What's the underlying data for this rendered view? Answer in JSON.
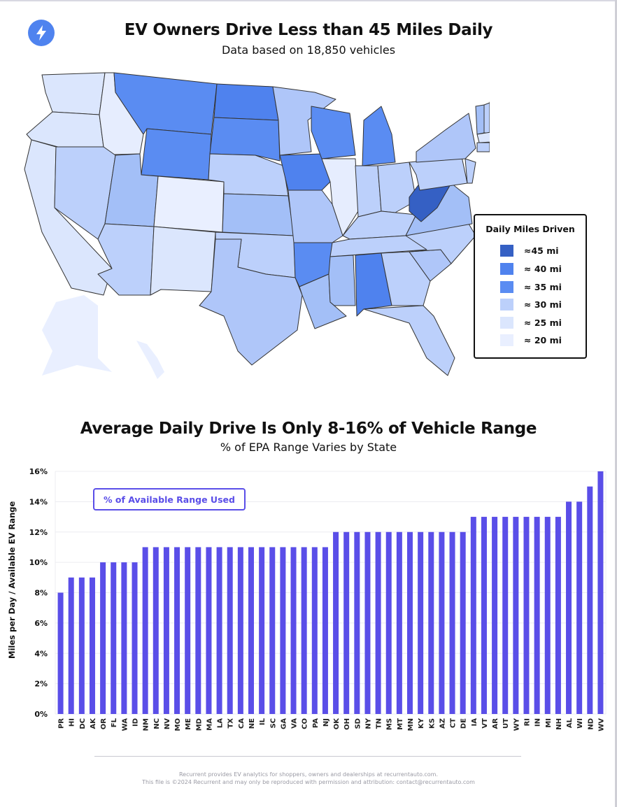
{
  "header": {
    "logo_icon": "lightning-bolt-icon",
    "title": "EV Owners Drive Less than 45 Miles Daily",
    "subtitle": "Data based on 18,850 vehicles"
  },
  "map": {
    "legend": {
      "title": "Daily Miles Driven",
      "items": [
        {
          "label": "≈45 mi",
          "color": "#3560c4"
        },
        {
          "label": "≈ 40 mi",
          "color": "#4f82ee"
        },
        {
          "label": "≈ 35 mi",
          "color": "#5a8cf2"
        },
        {
          "label": "≈ 30 mi",
          "color": "#bcd0fb"
        },
        {
          "label": "≈ 25 mi",
          "color": "#dbe6fd"
        },
        {
          "label": "≈ 20 mi",
          "color": "#e9efff"
        }
      ]
    }
  },
  "chart_section": {
    "title": "Average Daily Drive Is Only 8-16% of Vehicle Range",
    "subtitle": "% of EPA Range Varies by State",
    "ylabel": "Miles per Day  /  Available EV Range",
    "series_label": "% of Available Range Used"
  },
  "chart_data": {
    "type": "bar",
    "title": "Average Daily Drive Is Only 8-16% of Vehicle Range",
    "subtitle": "% of EPA Range Varies by State",
    "xlabel": "",
    "ylabel": "Miles per Day / Available EV Range",
    "ylim": [
      0,
      16
    ],
    "yticks": [
      "0%",
      "2%",
      "4%",
      "6%",
      "8%",
      "10%",
      "12%",
      "14%",
      "16%"
    ],
    "grid": true,
    "legend": "top-left",
    "bar_color": "#5a4ee8",
    "series_name": "% of Available Range Used",
    "categories": [
      "PR",
      "HI",
      "DC",
      "AK",
      "OR",
      "FL",
      "WA",
      "ID",
      "NM",
      "NC",
      "NV",
      "MO",
      "ME",
      "MD",
      "MA",
      "LA",
      "TX",
      "CA",
      "NE",
      "IL",
      "SC",
      "GA",
      "VA",
      "CO",
      "PA",
      "NJ",
      "OK",
      "OH",
      "SD",
      "NY",
      "TN",
      "MS",
      "MT",
      "MN",
      "KY",
      "KS",
      "AZ",
      "CT",
      "DE",
      "IA",
      "VT",
      "AR",
      "UT",
      "WY",
      "RI",
      "IN",
      "MI",
      "NH",
      "AL",
      "WI",
      "ND",
      "WV"
    ],
    "values": [
      8,
      9,
      9,
      9,
      10,
      10,
      10,
      10,
      11,
      11,
      11,
      11,
      11,
      11,
      11,
      11,
      11,
      11,
      11,
      11,
      11,
      11,
      11,
      11,
      11,
      11,
      12,
      12,
      12,
      12,
      12,
      12,
      12,
      12,
      12,
      12,
      12,
      12,
      12,
      13,
      13,
      13,
      13,
      13,
      13,
      13,
      13,
      13,
      14,
      14,
      15,
      16
    ]
  },
  "footer": {
    "line1": "Recurrent provides EV analytics for shoppers, owners and dealerships at recurrentauto.com.",
    "line2": "This file is ©2024 Recurrent and may only be reproduced with permission and attribution: contact@recurrentauto.com"
  }
}
